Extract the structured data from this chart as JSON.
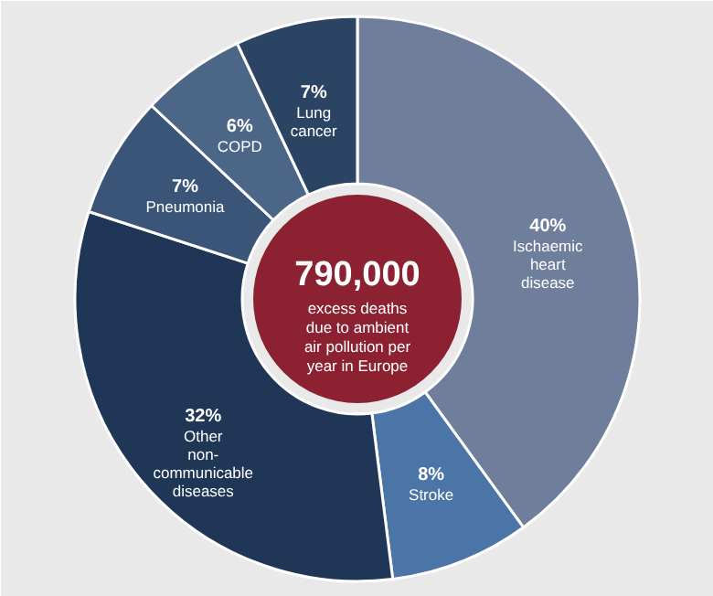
{
  "chart_data": {
    "type": "donut",
    "title": "790,000",
    "subtitle": "excess deaths\ndue to ambient\nair pollution per\nyear in Europe",
    "categories": [
      "Ischaemic\nheart\ndisease",
      "Stroke",
      "Other\nnon-\ncommunicable\ndiseases",
      "Pneumonia",
      "COPD",
      "Lung\ncancer"
    ],
    "values": [
      40,
      8,
      32,
      7,
      6,
      7
    ],
    "value_labels": [
      "40%",
      "8%",
      "32%",
      "7%",
      "6%",
      "7%"
    ],
    "colors": [
      "#6f7e9b",
      "#4a75a6",
      "#1f3657",
      "#3a5577",
      "#4b6686",
      "#2c4464"
    ]
  }
}
